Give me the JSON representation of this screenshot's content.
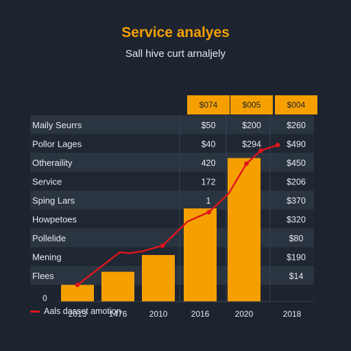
{
  "title": "Service analyes",
  "subtitle": "Sall hive curt arnaljely",
  "colors": {
    "background": "#1d2430",
    "bar": "#f5a000",
    "header": "#f5a000",
    "line": "#e0151b",
    "row_dark": "#1f2733",
    "row_light": "#2b3441"
  },
  "chart_data": {
    "type": "bar",
    "categories": [
      "2013",
      "1476",
      "2010",
      "2016",
      "2020",
      "2018"
    ],
    "values": [
      9,
      16,
      25,
      50,
      77,
      null
    ],
    "ylim": [
      0,
      100
    ],
    "grid": false,
    "legend_position": "bottom-left",
    "y_zero_label": "0",
    "series": [
      {
        "values": [
          9,
          16,
          25,
          50,
          77,
          null
        ]
      }
    ],
    "trend_line": {
      "name": "Aals dasset amotion",
      "points": [
        [
          0,
          9
        ],
        [
          1.05,
          26.5
        ],
        [
          1.3,
          26
        ],
        [
          1.6,
          27
        ],
        [
          2.1,
          30
        ],
        [
          2.7,
          43
        ],
        [
          3.2,
          48
        ],
        [
          3.65,
          58
        ],
        [
          4.05,
          74
        ],
        [
          4.35,
          81
        ],
        [
          4.7,
          84
        ]
      ]
    },
    "table": {
      "header": [
        "$074",
        "$005",
        "$004"
      ],
      "rows": [
        {
          "label": "Maily Seurrs",
          "values": [
            "$50",
            "$200",
            "$260"
          ]
        },
        {
          "label": "Pollor Lages",
          "values": [
            "$40",
            "$294",
            "$490"
          ]
        },
        {
          "label": "Otheraility",
          "values": [
            "420",
            "",
            "$450"
          ]
        },
        {
          "label": "Service",
          "values": [
            "172",
            "",
            "$206"
          ]
        },
        {
          "label": "Sping Lars",
          "values": [
            "1",
            "",
            "$370"
          ]
        },
        {
          "label": "Howpetoes",
          "values": [
            "",
            "",
            "$320"
          ]
        },
        {
          "label": "Pollelide",
          "values": [
            "",
            "",
            "$80"
          ]
        },
        {
          "label": "Mening",
          "values": [
            "",
            "",
            "$190"
          ]
        },
        {
          "label": "Flees",
          "values": [
            "",
            "",
            "$14"
          ]
        }
      ]
    }
  }
}
